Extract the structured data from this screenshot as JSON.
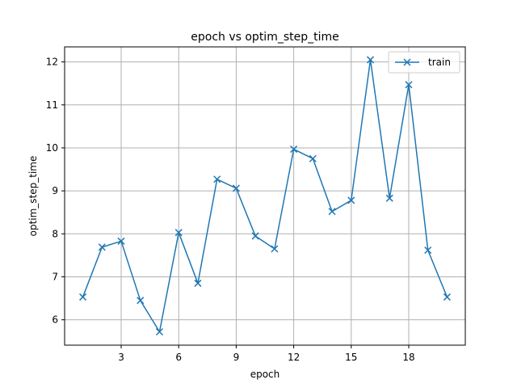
{
  "chart_data": {
    "type": "line",
    "title": "epoch vs optim_step_time",
    "xlabel": "epoch",
    "ylabel": "optim_step_time",
    "xlim": [
      0.05,
      20.95
    ],
    "ylim": [
      5.41,
      12.35
    ],
    "x_ticks": [
      3,
      6,
      9,
      12,
      15,
      18
    ],
    "y_ticks": [
      6,
      7,
      8,
      9,
      10,
      11,
      12
    ],
    "grid": true,
    "legend_position": "top-right",
    "series": [
      {
        "name": "train",
        "color": "#1f77b4",
        "marker": "x",
        "x": [
          1,
          2,
          3,
          4,
          5,
          6,
          7,
          8,
          9,
          10,
          11,
          12,
          13,
          14,
          15,
          16,
          17,
          18,
          19,
          20
        ],
        "y": [
          6.53,
          7.69,
          7.83,
          6.45,
          5.72,
          8.03,
          6.85,
          9.27,
          9.06,
          7.95,
          7.65,
          9.97,
          9.75,
          8.52,
          8.78,
          12.05,
          8.83,
          11.47,
          7.62,
          6.53
        ]
      }
    ]
  }
}
